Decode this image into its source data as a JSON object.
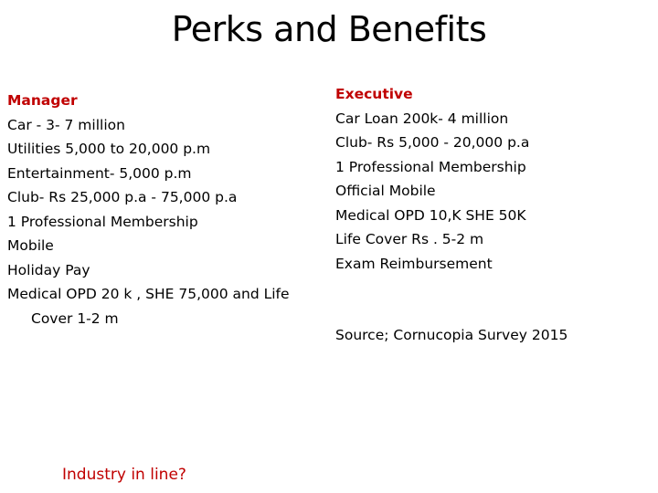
{
  "title": "Perks and Benefits",
  "manager": {
    "heading": "Manager",
    "items": [
      "Car - 3- 7 million",
      "Utilities 5,000 to 20,000 p.m",
      "Entertainment- 5,000 p.m",
      "Club- Rs 25,000 p.a - 75,000 p.a",
      "1 Professional Membership",
      "Mobile",
      "Holiday Pay",
      "Medical  OPD 20 k , SHE 75,000 and Life Cover 1-2 m"
    ]
  },
  "executive": {
    "heading": "Executive",
    "items": [
      "Car Loan 200k- 4 million",
      "Club- Rs 5,000 - 20,000 p.a",
      "1 Professional Membership",
      "Official Mobile",
      "Medical OPD 10,K SHE 50K",
      "Life Cover Rs . 5-2 m",
      "Exam Reimbursement"
    ]
  },
  "source": "Source; Cornucopia Survey 2015",
  "question": "Industry in line?",
  "colors": {
    "heading": "#c00000",
    "text": "#000000",
    "background": "#ffffff"
  }
}
